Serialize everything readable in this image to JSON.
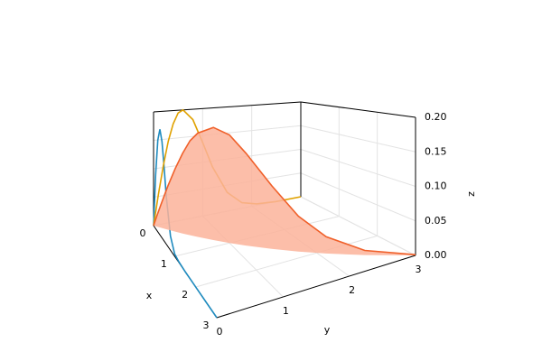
{
  "chart_data": {
    "type": "line3d",
    "xlabel": "x",
    "ylabel": "y",
    "zlabel": "z",
    "xlim": [
      0,
      3
    ],
    "ylim": [
      0,
      3
    ],
    "zlim": [
      0,
      0.2
    ],
    "xticks": [
      0,
      1,
      2,
      3
    ],
    "yticks": [
      0,
      1,
      2,
      3
    ],
    "zticks": [
      {
        "value": 0,
        "label": "0.00"
      },
      {
        "value": 0.05,
        "label": "0.05"
      },
      {
        "value": 0.1,
        "label": "0.10"
      },
      {
        "value": 0.15,
        "label": "0.15"
      },
      {
        "value": 0.2,
        "label": "0.20"
      }
    ],
    "grid": true,
    "series": [
      {
        "color": "#1f8bbf",
        "fill": false,
        "x": [
          0,
          0.05,
          0.1,
          0.2,
          0.3,
          0.4,
          0.5,
          0.6,
          0.8,
          1.0,
          1.2,
          1.5,
          1.8,
          2.1,
          2.5,
          3.0
        ],
        "y": [
          0,
          0,
          0,
          0,
          0,
          0,
          0,
          0,
          0,
          0,
          0,
          0,
          0,
          0,
          0,
          0
        ],
        "z": [
          0,
          0.049,
          0.094,
          0.158,
          0.18,
          0.163,
          0.123,
          0.08,
          0.023,
          0.004,
          0.001,
          0,
          0,
          0,
          0,
          0
        ]
      },
      {
        "color": "#e0a100",
        "fill": false,
        "x": [
          0,
          0,
          0,
          0,
          0,
          0,
          0,
          0,
          0,
          0,
          0,
          0,
          0,
          0,
          0,
          0
        ],
        "y": [
          0,
          0.05,
          0.1,
          0.2,
          0.3,
          0.4,
          0.5,
          0.6,
          0.8,
          1.0,
          1.2,
          1.5,
          1.8,
          2.1,
          2.5,
          3.0
        ],
        "z": [
          0,
          0.027,
          0.054,
          0.104,
          0.146,
          0.176,
          0.195,
          0.2,
          0.181,
          0.137,
          0.089,
          0.036,
          0.011,
          0.003,
          0,
          0
        ]
      },
      {
        "color": "#f0602a",
        "fill": true,
        "fill_color": "#fcb39a",
        "x": [
          0,
          0.05,
          0.1,
          0.2,
          0.3,
          0.4,
          0.5,
          0.6,
          0.8,
          1.0,
          1.2,
          1.5,
          1.8,
          2.1,
          2.5,
          3.0
        ],
        "y": [
          0,
          0.05,
          0.1,
          0.2,
          0.3,
          0.4,
          0.5,
          0.6,
          0.8,
          1.0,
          1.2,
          1.5,
          1.8,
          2.1,
          2.5,
          3.0
        ],
        "z": [
          0,
          0.02,
          0.039,
          0.076,
          0.109,
          0.138,
          0.162,
          0.177,
          0.19,
          0.18,
          0.152,
          0.102,
          0.056,
          0.026,
          0.007,
          0.001
        ]
      }
    ]
  }
}
